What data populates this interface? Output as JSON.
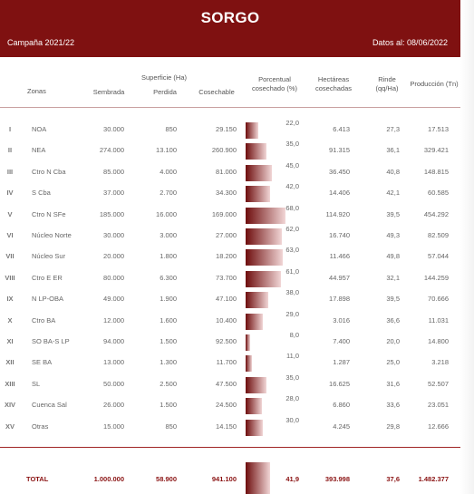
{
  "header": {
    "title": "SORGO",
    "campaign": "Campaña 2021/22",
    "date": "Datos al: 08/06/2022",
    "bg_color": "#7f1111"
  },
  "columns": {
    "zonas": "Zonas",
    "superficie": "Superficie (Ha)",
    "sembrada": "Sembrada",
    "perdida": "Perdida",
    "cosechable": "Cosechable",
    "porcentual_1": "Porcentual",
    "porcentual_2": "cosechado (%)",
    "hectareas_1": "Hectáreas",
    "hectareas_2": "cosechadas",
    "rinde_1": "Rinde",
    "rinde_2": "(qq/Ha)",
    "produccion": "Producción (Tn)"
  },
  "rows": [
    {
      "roman": "I",
      "zona": "NOA",
      "sembrada": "30.000",
      "perdida": "850",
      "cosechable": "29.150",
      "pct_label": "22,0",
      "pct": 22.0,
      "ha": "6.413",
      "rinde": "27,3",
      "prod": "17.513"
    },
    {
      "roman": "II",
      "zona": "NEA",
      "sembrada": "274.000",
      "perdida": "13.100",
      "cosechable": "260.900",
      "pct_label": "35,0",
      "pct": 35.0,
      "ha": "91.315",
      "rinde": "36,1",
      "prod": "329.421"
    },
    {
      "roman": "III",
      "zona": "Ctro N Cba",
      "sembrada": "85.000",
      "perdida": "4.000",
      "cosechable": "81.000",
      "pct_label": "45,0",
      "pct": 45.0,
      "ha": "36.450",
      "rinde": "40,8",
      "prod": "148.815"
    },
    {
      "roman": "IV",
      "zona": "S Cba",
      "sembrada": "37.000",
      "perdida": "2.700",
      "cosechable": "34.300",
      "pct_label": "42,0",
      "pct": 42.0,
      "ha": "14.406",
      "rinde": "42,1",
      "prod": "60.585"
    },
    {
      "roman": "V",
      "zona": "Ctro N SFe",
      "sembrada": "185.000",
      "perdida": "16.000",
      "cosechable": "169.000",
      "pct_label": "68,0",
      "pct": 68.0,
      "ha": "114.920",
      "rinde": "39,5",
      "prod": "454.292"
    },
    {
      "roman": "VI",
      "zona": "Núcleo Norte",
      "sembrada": "30.000",
      "perdida": "3.000",
      "cosechable": "27.000",
      "pct_label": "62,0",
      "pct": 62.0,
      "ha": "16.740",
      "rinde": "49,3",
      "prod": "82.509"
    },
    {
      "roman": "VII",
      "zona": "Núcleo Sur",
      "sembrada": "20.000",
      "perdida": "1.800",
      "cosechable": "18.200",
      "pct_label": "63,0",
      "pct": 63.0,
      "ha": "11.466",
      "rinde": "49,8",
      "prod": "57.044"
    },
    {
      "roman": "VIII",
      "zona": "Ctro E ER",
      "sembrada": "80.000",
      "perdida": "6.300",
      "cosechable": "73.700",
      "pct_label": "61,0",
      "pct": 61.0,
      "ha": "44.957",
      "rinde": "32,1",
      "prod": "144.259"
    },
    {
      "roman": "IX",
      "zona": "N LP-OBA",
      "sembrada": "49.000",
      "perdida": "1.900",
      "cosechable": "47.100",
      "pct_label": "38,0",
      "pct": 38.0,
      "ha": "17.898",
      "rinde": "39,5",
      "prod": "70.666"
    },
    {
      "roman": "X",
      "zona": "Ctro BA",
      "sembrada": "12.000",
      "perdida": "1.600",
      "cosechable": "10.400",
      "pct_label": "29,0",
      "pct": 29.0,
      "ha": "3.016",
      "rinde": "36,6",
      "prod": "11.031"
    },
    {
      "roman": "XI",
      "zona": "SO BA-S LP",
      "sembrada": "94.000",
      "perdida": "1.500",
      "cosechable": "92.500",
      "pct_label": "8,0",
      "pct": 8.0,
      "ha": "7.400",
      "rinde": "20,0",
      "prod": "14.800"
    },
    {
      "roman": "XII",
      "zona": "SE BA",
      "sembrada": "13.000",
      "perdida": "1.300",
      "cosechable": "11.700",
      "pct_label": "11,0",
      "pct": 11.0,
      "ha": "1.287",
      "rinde": "25,0",
      "prod": "3.218"
    },
    {
      "roman": "XIII",
      "zona": "SL",
      "sembrada": "50.000",
      "perdida": "2.500",
      "cosechable": "47.500",
      "pct_label": "35,0",
      "pct": 35.0,
      "ha": "16.625",
      "rinde": "31,6",
      "prod": "52.507"
    },
    {
      "roman": "XIV",
      "zona": "Cuenca Sal",
      "sembrada": "26.000",
      "perdida": "1.500",
      "cosechable": "24.500",
      "pct_label": "28,0",
      "pct": 28.0,
      "ha": "6.860",
      "rinde": "33,6",
      "prod": "23.051"
    },
    {
      "roman": "XV",
      "zona": "Otras",
      "sembrada": "15.000",
      "perdida": "850",
      "cosechable": "14.150",
      "pct_label": "30,0",
      "pct": 30.0,
      "ha": "4.245",
      "rinde": "29,8",
      "prod": "12.666"
    }
  ],
  "total": {
    "label": "TOTAL",
    "sembrada": "1.000.000",
    "perdida": "58.900",
    "cosechable": "941.100",
    "pct_label": "41,9",
    "pct": 41.9,
    "ha": "393.998",
    "rinde": "37,6",
    "prod": "1.482.377"
  }
}
